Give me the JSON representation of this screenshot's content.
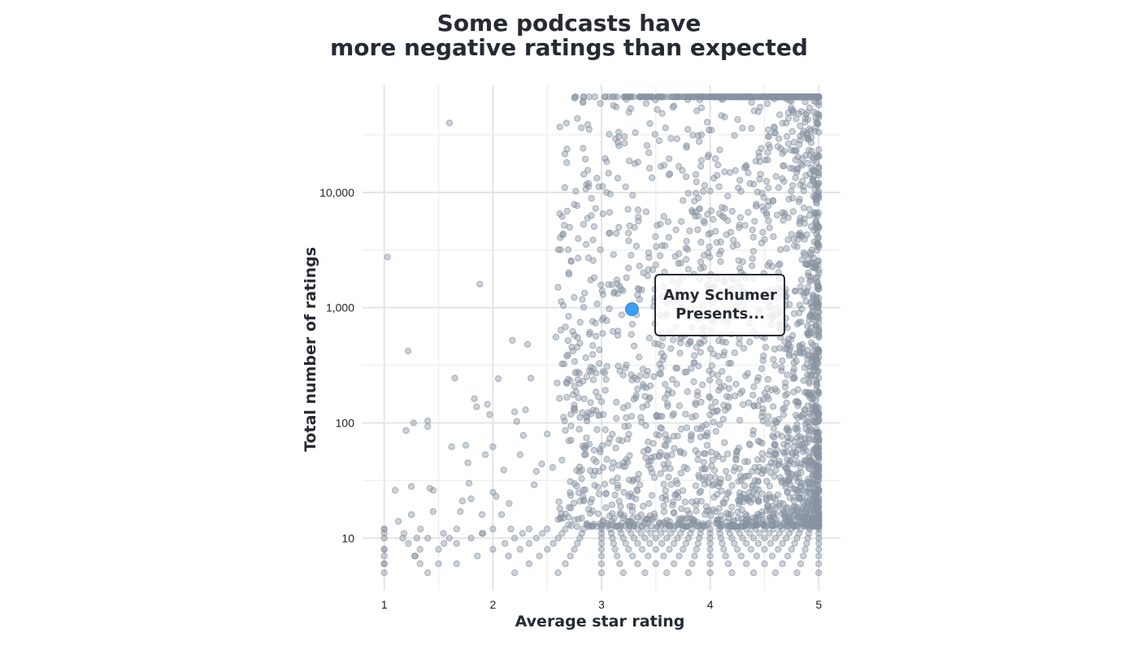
{
  "chart_data": {
    "type": "scatter",
    "title_line1": "Some podcasts have",
    "title_line2": "more negative ratings than expected",
    "xlabel": "Average star rating",
    "ylabel": "Total number of ratings",
    "x_scale": "linear",
    "y_scale": "log",
    "xlim": [
      0.8,
      5.2
    ],
    "ylim": [
      3.5,
      85000
    ],
    "x_ticks": [
      1,
      2,
      3,
      4,
      5
    ],
    "x_tick_labels": [
      "1",
      "2",
      "3",
      "4",
      "5"
    ],
    "y_ticks": [
      10,
      100,
      1000,
      10000
    ],
    "y_tick_labels": [
      "10",
      "100",
      "1,000",
      "10,000"
    ],
    "grid": true,
    "point_color": "#8893a3",
    "highlight_color": "#3d9ef0",
    "highlight": {
      "x": 3.28,
      "y": 970,
      "label_line1": "Amy Schumer",
      "label_line2": "Presents..."
    },
    "points": [
      [
        1.03,
        2750
      ],
      [
        1.0,
        12
      ],
      [
        1.0,
        11
      ],
      [
        1.0,
        8
      ],
      [
        1.0,
        7
      ],
      [
        1.0,
        6
      ],
      [
        1.0,
        5
      ],
      [
        1.1,
        26
      ],
      [
        1.13,
        14
      ],
      [
        1.17,
        10
      ],
      [
        1.2,
        86
      ],
      [
        1.22,
        420
      ],
      [
        1.25,
        28
      ],
      [
        1.25,
        16
      ],
      [
        1.27,
        100
      ],
      [
        1.28,
        7
      ],
      [
        1.3,
        10
      ],
      [
        1.33,
        8
      ],
      [
        1.33,
        6
      ],
      [
        1.4,
        104
      ],
      [
        1.4,
        93
      ],
      [
        1.42,
        27
      ],
      [
        1.45,
        26
      ],
      [
        1.45,
        17
      ],
      [
        1.5,
        6
      ],
      [
        1.55,
        9
      ],
      [
        1.6,
        40000
      ],
      [
        1.6,
        10
      ],
      [
        1.62,
        62
      ],
      [
        1.65,
        245
      ],
      [
        1.7,
        17
      ],
      [
        1.72,
        21
      ],
      [
        1.75,
        64
      ],
      [
        1.77,
        45
      ],
      [
        1.78,
        30
      ],
      [
        1.8,
        22
      ],
      [
        1.83,
        162
      ],
      [
        1.85,
        138
      ],
      [
        1.88,
        1600
      ],
      [
        1.9,
        16
      ],
      [
        1.9,
        11
      ],
      [
        1.93,
        53
      ],
      [
        1.95,
        145
      ],
      [
        1.97,
        118
      ],
      [
        2.0,
        62
      ],
      [
        2.0,
        25
      ],
      [
        2.03,
        23
      ],
      [
        2.05,
        242
      ],
      [
        2.08,
        16
      ],
      [
        2.1,
        39
      ],
      [
        2.15,
        20
      ],
      [
        2.18,
        520
      ],
      [
        2.2,
        125
      ],
      [
        2.22,
        103
      ],
      [
        2.25,
        53
      ],
      [
        2.28,
        78
      ],
      [
        2.3,
        130
      ],
      [
        2.32,
        480
      ],
      [
        2.35,
        245
      ],
      [
        2.38,
        29
      ],
      [
        2.4,
        38
      ],
      [
        2.45,
        44
      ],
      [
        2.5,
        80
      ],
      [
        2.55,
        41
      ],
      [
        2.58,
        555
      ],
      [
        2.6,
        1500
      ],
      [
        2.62,
        4050
      ],
      [
        2.65,
        112
      ],
      [
        2.7,
        70
      ],
      [
        2.72,
        2550
      ],
      [
        2.75,
        575
      ],
      [
        2.8,
        220
      ],
      [
        2.83,
        230
      ],
      [
        2.85,
        60
      ],
      [
        2.88,
        2700
      ],
      [
        2.9,
        150
      ],
      [
        2.92,
        470
      ],
      [
        2.95,
        128
      ],
      [
        2.98,
        430
      ],
      [
        3.0,
        153
      ],
      [
        3.05,
        310
      ],
      [
        3.1,
        80
      ],
      [
        3.15,
        575
      ],
      [
        3.2,
        260
      ],
      [
        3.25,
        3800
      ],
      [
        3.3,
        465
      ],
      [
        3.35,
        2300
      ],
      [
        3.4,
        170
      ],
      [
        3.45,
        210
      ],
      [
        3.5,
        2350
      ],
      [
        3.55,
        300
      ],
      [
        3.6,
        880
      ],
      [
        3.65,
        1700
      ],
      [
        3.7,
        1200
      ],
      [
        3.75,
        1850
      ],
      [
        3.8,
        2150
      ],
      [
        3.85,
        1950
      ],
      [
        3.9,
        7200
      ],
      [
        3.95,
        11500
      ],
      [
        4.0,
        10300
      ],
      [
        4.05,
        4600
      ],
      [
        4.1,
        3100
      ],
      [
        4.15,
        4300
      ],
      [
        4.2,
        1750
      ],
      [
        4.25,
        3500
      ],
      [
        4.3,
        2500
      ],
      [
        4.35,
        14800
      ],
      [
        4.4,
        11800
      ],
      [
        4.45,
        20500
      ],
      [
        4.48,
        7500
      ],
      [
        4.5,
        3900
      ],
      [
        4.52,
        12500
      ],
      [
        4.55,
        24500
      ],
      [
        4.58,
        8500
      ],
      [
        4.6,
        33000
      ],
      [
        4.63,
        11000
      ],
      [
        4.65,
        24000
      ],
      [
        4.68,
        17000
      ],
      [
        4.7,
        40000
      ],
      [
        4.72,
        44000
      ],
      [
        4.75,
        52000
      ],
      [
        4.77,
        23000
      ],
      [
        4.8,
        16000
      ],
      [
        4.82,
        26000
      ],
      [
        4.85,
        12500
      ],
      [
        4.88,
        21000
      ],
      [
        4.9,
        43000
      ],
      [
        4.93,
        30000
      ],
      [
        4.95,
        19000
      ],
      [
        4.98,
        9000
      ],
      [
        5.0,
        12000
      ],
      [
        5.0,
        5000
      ]
    ]
  }
}
